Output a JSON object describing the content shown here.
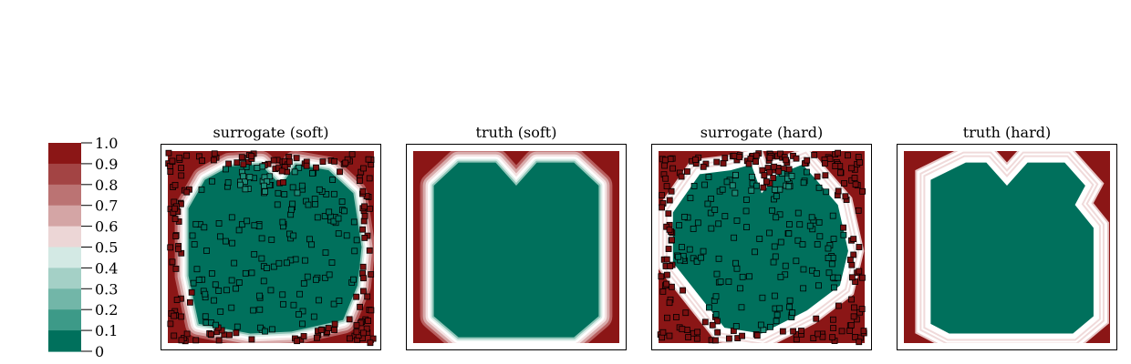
{
  "colors": {
    "red": "#8b1616",
    "green": "#00705c",
    "white": "#ffffff",
    "frame": "#000000"
  },
  "chart_data": {
    "type": "heatmap",
    "colorbar": {
      "tick_labels": [
        "1.0",
        "0.9",
        "0.8",
        "0.7",
        "0.6",
        "0.5",
        "0.4",
        "0.3",
        "0.2",
        "0.1",
        "0"
      ],
      "levels": [
        {
          "value": 0.95,
          "color": "#8b1616"
        },
        {
          "value": 0.85,
          "color": "#a34444"
        },
        {
          "value": 0.75,
          "color": "#bb7373"
        },
        {
          "value": 0.65,
          "color": "#d4a5a5"
        },
        {
          "value": 0.55,
          "color": "#ecd6d6"
        },
        {
          "value": 0.45,
          "color": "#d3e9e4"
        },
        {
          "value": 0.35,
          "color": "#a4d0c6"
        },
        {
          "value": 0.25,
          "color": "#72b6a8"
        },
        {
          "value": 0.15,
          "color": "#3d9a88"
        },
        {
          "value": 0.05,
          "color": "#00705c"
        }
      ],
      "range": [
        0,
        1
      ]
    },
    "panels": [
      {
        "title": "surrogate (soft)",
        "kind": "surrogate",
        "boundary": "soft",
        "xlim": [
          0,
          1
        ],
        "ylim": [
          0,
          1
        ],
        "green_region": [
          [
            0.15,
            0.1
          ],
          [
            0.1,
            0.35
          ],
          [
            0.1,
            0.7
          ],
          [
            0.18,
            0.85
          ],
          [
            0.3,
            0.92
          ],
          [
            0.45,
            0.93
          ],
          [
            0.55,
            0.82
          ],
          [
            0.62,
            0.93
          ],
          [
            0.78,
            0.9
          ],
          [
            0.9,
            0.78
          ],
          [
            0.94,
            0.5
          ],
          [
            0.92,
            0.3
          ],
          [
            0.85,
            0.12
          ],
          [
            0.6,
            0.06
          ],
          [
            0.4,
            0.05
          ]
        ]
      },
      {
        "title": "truth (soft)",
        "kind": "truth",
        "boundary": "soft",
        "xlim": [
          0,
          1
        ],
        "ylim": [
          0,
          1
        ],
        "green_region": [
          [
            0.1,
            0.14
          ],
          [
            0.1,
            0.82
          ],
          [
            0.22,
            0.94
          ],
          [
            0.4,
            0.94
          ],
          [
            0.5,
            0.82
          ],
          [
            0.6,
            0.94
          ],
          [
            0.78,
            0.94
          ],
          [
            0.9,
            0.82
          ],
          [
            0.9,
            0.14
          ],
          [
            0.78,
            0.03
          ],
          [
            0.22,
            0.03
          ]
        ]
      },
      {
        "title": "surrogate (hard)",
        "kind": "surrogate",
        "boundary": "hard",
        "xlim": [
          0,
          1
        ],
        "ylim": [
          0,
          1
        ],
        "green_region": [
          [
            0.32,
            0.08
          ],
          [
            0.07,
            0.42
          ],
          [
            0.07,
            0.68
          ],
          [
            0.2,
            0.88
          ],
          [
            0.35,
            0.9
          ],
          [
            0.45,
            0.93
          ],
          [
            0.5,
            0.78
          ],
          [
            0.58,
            0.88
          ],
          [
            0.7,
            0.93
          ],
          [
            0.87,
            0.72
          ],
          [
            0.92,
            0.48
          ],
          [
            0.88,
            0.3
          ],
          [
            0.72,
            0.17
          ],
          [
            0.5,
            0.05
          ]
        ]
      },
      {
        "title": "truth (hard)",
        "kind": "truth",
        "boundary": "hard",
        "xlim": [
          0,
          1
        ],
        "ylim": [
          0,
          1
        ],
        "green_region": [
          [
            0.13,
            0.1
          ],
          [
            0.13,
            0.85
          ],
          [
            0.3,
            0.94
          ],
          [
            0.4,
            0.94
          ],
          [
            0.5,
            0.82
          ],
          [
            0.6,
            0.94
          ],
          [
            0.78,
            0.94
          ],
          [
            0.88,
            0.82
          ],
          [
            0.83,
            0.72
          ],
          [
            0.92,
            0.6
          ],
          [
            0.92,
            0.14
          ],
          [
            0.82,
            0.05
          ],
          [
            0.22,
            0.05
          ]
        ]
      }
    ]
  }
}
